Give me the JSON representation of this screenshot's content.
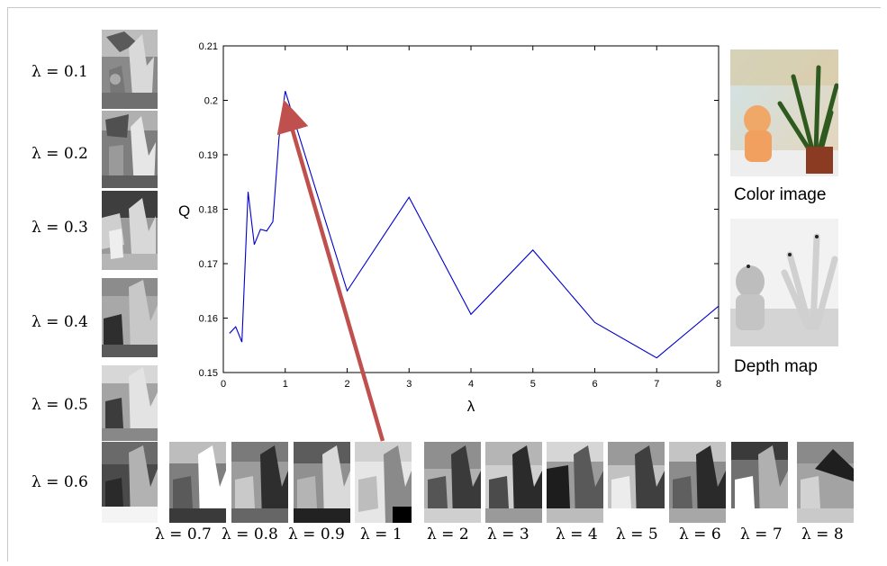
{
  "chart_data": {
    "type": "line",
    "xlabel": "λ",
    "ylabel": "Q",
    "xlim": [
      0,
      8
    ],
    "ylim": [
      0.15,
      0.21
    ],
    "x_ticks": [
      "0",
      "1",
      "2",
      "3",
      "4",
      "5",
      "6",
      "7",
      "8"
    ],
    "y_ticks": [
      "0.15",
      "0.16",
      "0.17",
      "0.18",
      "0.19",
      "0.2",
      "0.21"
    ],
    "grid": false,
    "series": [
      {
        "color": "#0000cc",
        "x": [
          0.1,
          0.2,
          0.3,
          0.4,
          0.5,
          0.6,
          0.7,
          0.8,
          0.9,
          1,
          2,
          3,
          4,
          5,
          6,
          7,
          8
        ],
        "y": [
          0.1572,
          0.1584,
          0.1556,
          0.1832,
          0.1735,
          0.1763,
          0.176,
          0.1777,
          0.1932,
          0.2017,
          0.165,
          0.1822,
          0.1607,
          0.1725,
          0.1592,
          0.1527,
          0.1622
        ]
      }
    ],
    "annotation": {
      "type": "arrow",
      "color": "#c0504d",
      "points_to": {
        "x": 1,
        "y": 0.199
      }
    }
  },
  "left_labels": [
    "λ = 0.1",
    "λ = 0.2",
    "λ = 0.3",
    "λ = 0.4",
    "λ = 0.5",
    "λ = 0.6"
  ],
  "bottom_labels": [
    "λ = 0.7",
    "λ = 0.8",
    "λ = 0.9",
    "λ = 1",
    "λ = 2",
    "λ = 3",
    "λ = 4",
    "λ = 5",
    "λ = 6",
    "λ = 7",
    "λ = 8"
  ],
  "photos": {
    "color_label": "Color image",
    "depth_label": "Depth map"
  },
  "colors": {
    "line": "#0000cc",
    "arrow": "#c0504d"
  }
}
